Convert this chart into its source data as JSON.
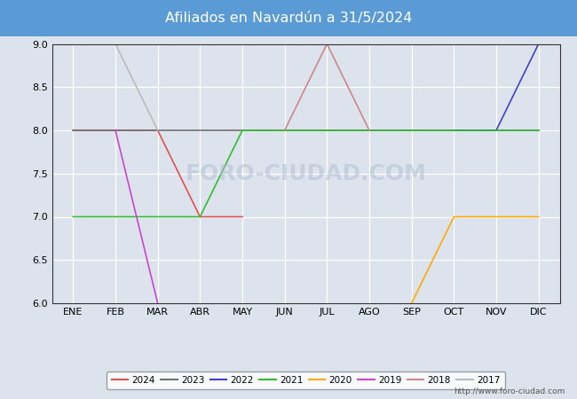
{
  "title": "Afiliados en Navardún a 31/5/2024",
  "title_bg_color": "#5b9bd5",
  "title_text_color": "white",
  "ylim": [
    6.0,
    9.0
  ],
  "yticks": [
    6.0,
    6.5,
    7.0,
    7.5,
    8.0,
    8.5,
    9.0
  ],
  "months": [
    "ENE",
    "FEB",
    "MAR",
    "ABR",
    "MAY",
    "JUN",
    "JUL",
    "AGO",
    "SEP",
    "OCT",
    "NOV",
    "DIC"
  ],
  "month_indices": [
    1,
    2,
    3,
    4,
    5,
    6,
    7,
    8,
    9,
    10,
    11,
    12
  ],
  "background_color": "#dce3ec",
  "plot_bg_color": "#dce3ec",
  "url": "http://www.foro-ciudad.com",
  "series": {
    "2024": {
      "color": "#e05050",
      "data": [
        [
          1,
          8.0
        ],
        [
          2,
          8.0
        ],
        [
          3,
          8.0
        ],
        [
          4,
          7.0
        ],
        [
          5,
          7.0
        ]
      ]
    },
    "2023": {
      "color": "#707070",
      "data": [
        [
          1,
          8.0
        ],
        [
          2,
          8.0
        ],
        [
          3,
          8.0
        ],
        [
          4,
          8.0
        ],
        [
          5,
          8.0
        ],
        [
          6,
          8.0
        ],
        [
          7,
          8.0
        ],
        [
          8,
          8.0
        ],
        [
          9,
          8.0
        ],
        [
          10,
          8.0
        ],
        [
          11,
          8.0
        ],
        [
          12,
          8.0
        ]
      ]
    },
    "2022": {
      "color": "#4040cc",
      "data": [
        [
          10,
          8.0
        ],
        [
          11,
          8.0
        ],
        [
          12,
          9.0
        ]
      ]
    },
    "2021": {
      "color": "#33bb33",
      "data": [
        [
          1,
          7.0
        ],
        [
          2,
          7.0
        ],
        [
          3,
          7.0
        ],
        [
          4,
          7.0
        ],
        [
          5,
          8.0
        ],
        [
          6,
          8.0
        ],
        [
          7,
          8.0
        ],
        [
          8,
          8.0
        ],
        [
          9,
          8.0
        ],
        [
          10,
          8.0
        ],
        [
          11,
          8.0
        ],
        [
          12,
          8.0
        ]
      ]
    },
    "2020": {
      "color": "#ffaa00",
      "data": [
        [
          9,
          6.0
        ],
        [
          10,
          7.0
        ],
        [
          11,
          7.0
        ],
        [
          12,
          7.0
        ]
      ]
    },
    "2019": {
      "color": "#cc44cc",
      "data": [
        [
          2,
          8.0
        ],
        [
          3,
          6.0
        ]
      ]
    },
    "2018": {
      "color": "#cc8888",
      "data": [
        [
          6,
          8.0
        ],
        [
          7,
          9.0
        ],
        [
          8,
          8.0
        ]
      ]
    },
    "2017": {
      "color": "#bbbbbb",
      "data": [
        [
          2,
          9.0
        ],
        [
          3,
          8.0
        ]
      ]
    }
  },
  "legend_order": [
    "2024",
    "2023",
    "2022",
    "2021",
    "2020",
    "2019",
    "2018",
    "2017"
  ]
}
